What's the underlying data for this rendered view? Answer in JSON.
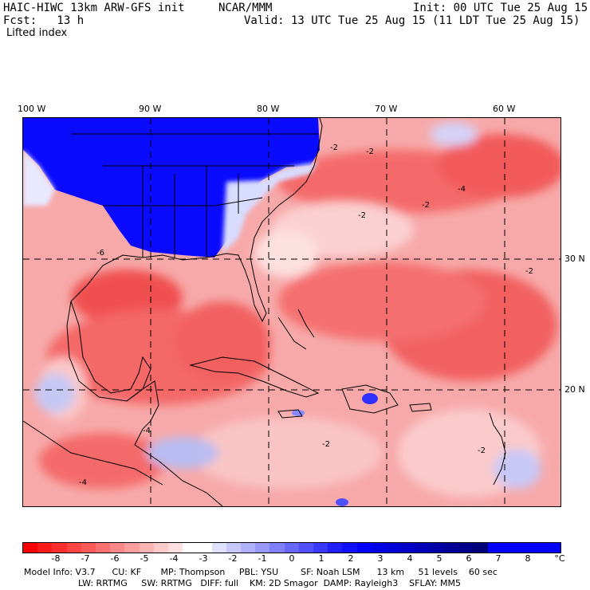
{
  "header": {
    "model": "HAIC-HIWC 13km ARW-GFS init",
    "org": "NCAR/MMM",
    "init": "Init: 00 UTC Tue 25 Aug 15",
    "fcst": "Fcst:   13 h",
    "valid": "Valid: 13 UTC Tue 25 Aug 15 (11 LDT Tue 25 Aug 15)",
    "field": "Lifted index"
  },
  "map": {
    "lon_labels": [
      "100 W",
      "90 W",
      "80 W",
      "70 W",
      "60 W"
    ],
    "lat_labels": [
      "30 N",
      "20 N"
    ],
    "contour_labels": [
      "-2",
      "-4",
      "-6",
      "-2",
      "-2",
      "-4",
      "-2",
      "-2",
      "-2",
      "-4",
      "-2"
    ]
  },
  "colorbar": {
    "labels": [
      "-8",
      "-7",
      "-6",
      "-5",
      "-4",
      "-3",
      "-2",
      "-1",
      "0",
      "1",
      "2",
      "3",
      "4",
      "5",
      "6",
      "7",
      "8"
    ],
    "unit": "°C",
    "colors": [
      "#ff0000",
      "#ff1a1a",
      "#ff2e2e",
      "#ff4444",
      "#ff5a5a",
      "#ff7070",
      "#ff8888",
      "#ff9e9e",
      "#ffb4b4",
      "#ffcaca",
      "#ffe0e0",
      "#ffffff",
      "#ffffff",
      "#e0e0ff",
      "#c8c8ff",
      "#b0b0ff",
      "#9898ff",
      "#8080ff",
      "#6868ff",
      "#5050ff",
      "#3838ff",
      "#2020ff",
      "#1010ff",
      "#0000ff",
      "#0000e8",
      "#0000d8",
      "#0000c8",
      "#0000b8",
      "#0000a8",
      "#000098",
      "#000088",
      "#000078",
      "#0000ff",
      "#0000ff",
      "#0000ff",
      "#0000ff",
      "#0000ff"
    ]
  },
  "footer": {
    "line1": "Model Info: V3.7      CU: KF       MP: Thompson     PBL: YSU        SF: Noah LSM      13 km     51 levels    60 sec",
    "line2": "LW: RRTMG     SW: RRTMG   DIFF: full    KM: 2D Smagor  DAMP: Rayleigh3    SFLAY: MM5"
  }
}
